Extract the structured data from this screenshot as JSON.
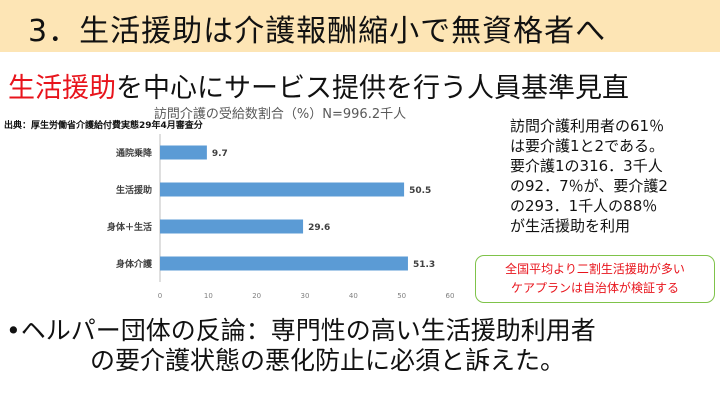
{
  "header": {
    "title": "3．生活援助は介護報酬縮小で無資格者へ"
  },
  "subtitle": {
    "highlight": "生活援助",
    "rest": "を中心にサービス提供を行う人員基準見直"
  },
  "source_label": "出典：厚生労働省介護給付費実態29年4月審査分",
  "note_lines": [
    "訪問介護利用者の61％",
    "は要介護1と2である。",
    "要介護1の316．3千人",
    "の92．7％が、要介護2",
    "の293．1千人の88％",
    "が生活援助を利用"
  ],
  "callout": {
    "line1": "全国平均より二割生活援助が多い",
    "line2": "ケアプランは自治体が検証する"
  },
  "bottom_text": {
    "line1": "•ヘルパー団体の反論：専門性の高い生活援助利用者",
    "line2": "の要介護状態の悪化防止に必須と訴えた。"
  },
  "colors": {
    "bar": "#5b9bd5",
    "highlight_red": "#e8141c",
    "title_bg": "#fde5b5",
    "callout_border": "#7fc34a"
  },
  "chart_data": {
    "type": "bar",
    "orientation": "horizontal",
    "title": "訪問介護の受給数割合（%）N=996.2千人",
    "categories": [
      "通院乗降",
      "生活援助",
      "身体＋生活",
      "身体介護"
    ],
    "values": [
      9.7,
      50.5,
      29.6,
      51.3
    ],
    "value_labels": [
      "9.7",
      "50.5",
      "29.6",
      "51.3"
    ],
    "xticks": [
      "0",
      "10",
      "20",
      "30",
      "40",
      "50",
      "60"
    ],
    "xlim": [
      0,
      60
    ],
    "grid": false,
    "legend": "none"
  }
}
